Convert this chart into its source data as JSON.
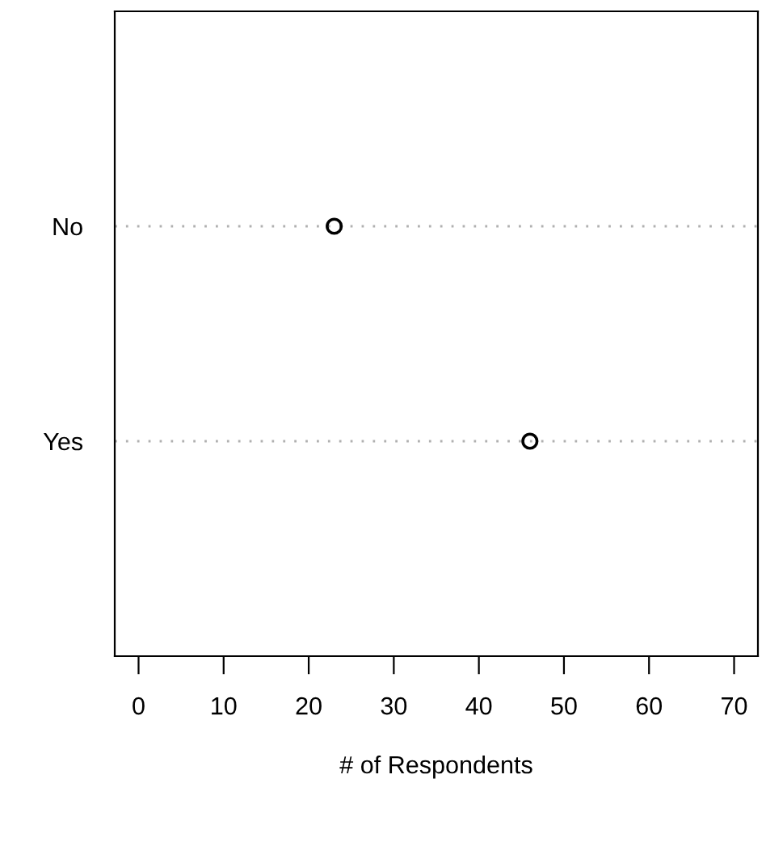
{
  "chart_data": {
    "type": "scatter",
    "orientation": "horizontal",
    "xlabel": "# of Respondents",
    "categories": [
      "No",
      "Yes"
    ],
    "series": [
      {
        "color": "#000000",
        "values": [
          23,
          46
        ]
      }
    ],
    "xlim": [
      -2.8,
      72.8
    ],
    "xticks": [
      0,
      10,
      20,
      30,
      40,
      50,
      60,
      70
    ],
    "grid": "y",
    "marker": "circle",
    "legend": false
  }
}
